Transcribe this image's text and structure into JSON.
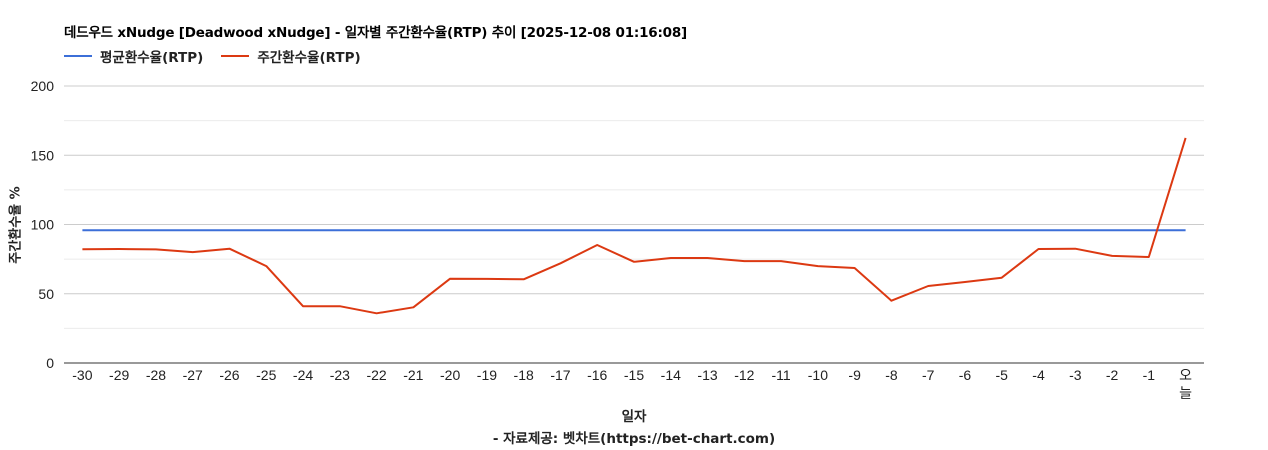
{
  "chart_data": {
    "type": "line",
    "title": "데드우드 xNudge [Deadwood xNudge] - 일자별 주간환수율(RTP) 추이 [2025-12-08 01:16:08]",
    "xlabel": "일자",
    "ylabel": "주간환수율 %",
    "source": "- 자료제공: 벳차트(https://bet-chart.com)",
    "ylim": [
      0,
      200
    ],
    "yticks": [
      0,
      50,
      100,
      150,
      200
    ],
    "grid": true,
    "legend_position": "top",
    "categories": [
      "-30",
      "-29",
      "-28",
      "-27",
      "-26",
      "-25",
      "-24",
      "-23",
      "-22",
      "-21",
      "-20",
      "-19",
      "-18",
      "-17",
      "-16",
      "-15",
      "-14",
      "-13",
      "-12",
      "-11",
      "-10",
      "-9",
      "-8",
      "-7",
      "-6",
      "-5",
      "-4",
      "-3",
      "-2",
      "-1",
      "오늘"
    ],
    "series": [
      {
        "name": "평균환수율(RTP)",
        "color": "#3c6fd8",
        "values": [
          95.8,
          95.8,
          95.8,
          95.8,
          95.8,
          95.8,
          95.8,
          95.8,
          95.8,
          95.8,
          95.8,
          95.8,
          95.8,
          95.8,
          95.8,
          95.8,
          95.8,
          95.8,
          95.8,
          95.8,
          95.8,
          95.8,
          95.8,
          95.8,
          95.8,
          95.8,
          95.8,
          95.8,
          95.8,
          95.8,
          95.8
        ]
      },
      {
        "name": "주간환수율(RTP)",
        "color": "#dc3912",
        "values": [
          82.1,
          82.3,
          82.0,
          80.1,
          82.5,
          70.0,
          41.0,
          41.0,
          35.9,
          40.2,
          60.9,
          60.7,
          60.4,
          72.0,
          85.2,
          73.1,
          75.8,
          75.8,
          73.6,
          73.6,
          70.0,
          68.6,
          45.0,
          55.6,
          58.5,
          61.6,
          82.3,
          82.5,
          77.3,
          76.5,
          162.5
        ]
      }
    ]
  },
  "legend": {
    "items": [
      {
        "label": "평균환수율(RTP)"
      },
      {
        "label": "주간환수율(RTP)"
      }
    ]
  }
}
